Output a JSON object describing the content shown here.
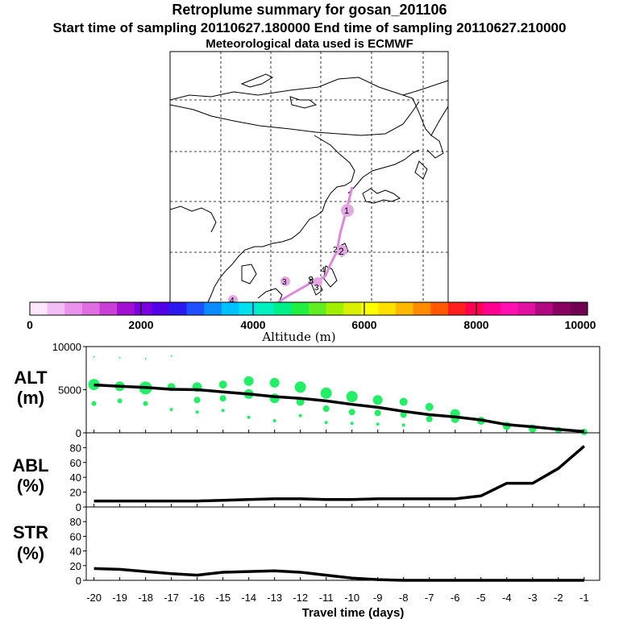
{
  "header": {
    "title": "Retroplume summary for gosan_201106",
    "sampling_line": "Start time of sampling 20110627.180000     End time of sampling 20110627.210000",
    "met_line": "Meteorological data used is ECMWF"
  },
  "colorbar": {
    "label": "Altitude (m)",
    "ticks": [
      "0",
      "2000",
      "4000",
      "6000",
      "8000",
      "10000"
    ],
    "colors": [
      "#fbe6fb",
      "#f3bef3",
      "#e993ec",
      "#de6ee2",
      "#c93fd5",
      "#a20fd0",
      "#7a00dd",
      "#5200e6",
      "#2a1af0",
      "#1e50ff",
      "#0a8cff",
      "#00c0ff",
      "#00e0ee",
      "#00f0c0",
      "#00ee88",
      "#20ee40",
      "#60ee20",
      "#a0f000",
      "#d8f000",
      "#ffff00",
      "#ffe000",
      "#ffb800",
      "#ff8c00",
      "#ff5a00",
      "#ff1e1e",
      "#ff0050",
      "#ff0090",
      "#ff10b0",
      "#e010a0",
      "#b00880",
      "#880060",
      "#700050"
    ]
  },
  "map": {
    "labels": [
      "1",
      "2",
      "2",
      "3",
      "3",
      "3",
      "4",
      "4"
    ],
    "colors": {
      "trajectory": "#dd88dd",
      "marker": "#e4a8e4"
    }
  },
  "panels": {
    "alt": {
      "label_top": "ALT",
      "label_bottom": "(m)"
    },
    "abl": {
      "label_top": "ABL",
      "label_bottom": "(%)"
    },
    "str": {
      "label_top": "STR",
      "label_bottom": "(%)"
    }
  },
  "xaxis": {
    "label": "Travel time (days)"
  },
  "colors": {
    "plume": "#22ee66",
    "line": "#000000"
  },
  "chart_data": [
    {
      "type": "line",
      "title": "ALT",
      "ylabel": "(m)",
      "ylim": [
        0,
        10000
      ],
      "yticks": [
        "10000",
        "5000",
        "0"
      ],
      "xlim": [
        -20.3,
        -0.4
      ],
      "xticks": [
        "-20",
        "-19",
        "-18",
        "-17",
        "-16",
        "-15",
        "-14",
        "-13",
        "-12",
        "-11",
        "-10",
        "-9",
        "-8",
        "-7",
        "-6",
        "-5",
        "-4",
        "-3",
        "-2",
        "-1"
      ],
      "x": [
        -20,
        -19,
        -18,
        -17,
        -16,
        -15,
        -14,
        -13,
        -12,
        -11,
        -10,
        -9,
        -8,
        -7,
        -6,
        -5,
        -4,
        -3,
        -2,
        -1
      ],
      "values": [
        5550,
        5400,
        5250,
        5050,
        5000,
        4750,
        4500,
        4200,
        4000,
        3700,
        3300,
        2950,
        2500,
        2100,
        1850,
        1500,
        950,
        700,
        400,
        150
      ],
      "plume_points": [
        {
          "x": -20,
          "y": 5600,
          "r": 7
        },
        {
          "x": -20,
          "y": 3400,
          "r": 3
        },
        {
          "x": -20,
          "y": 8800,
          "r": 1
        },
        {
          "x": -19,
          "y": 5400,
          "r": 6
        },
        {
          "x": -19,
          "y": 3700,
          "r": 3
        },
        {
          "x": -19,
          "y": 8700,
          "r": 1
        },
        {
          "x": -18,
          "y": 5200,
          "r": 8
        },
        {
          "x": -18,
          "y": 3400,
          "r": 3
        },
        {
          "x": -18,
          "y": 8600,
          "r": 1
        },
        {
          "x": -17,
          "y": 5300,
          "r": 5
        },
        {
          "x": -17,
          "y": 2700,
          "r": 2
        },
        {
          "x": -17,
          "y": 8900,
          "r": 1
        },
        {
          "x": -16,
          "y": 5300,
          "r": 6
        },
        {
          "x": -16,
          "y": 3800,
          "r": 4
        },
        {
          "x": -16,
          "y": 2400,
          "r": 2
        },
        {
          "x": -15,
          "y": 5600,
          "r": 5
        },
        {
          "x": -15,
          "y": 4000,
          "r": 4
        },
        {
          "x": -15,
          "y": 2600,
          "r": 2
        },
        {
          "x": -14,
          "y": 6000,
          "r": 6
        },
        {
          "x": -14,
          "y": 4500,
          "r": 6
        },
        {
          "x": -14,
          "y": 1800,
          "r": 2
        },
        {
          "x": -13,
          "y": 5800,
          "r": 6
        },
        {
          "x": -13,
          "y": 4000,
          "r": 6
        },
        {
          "x": -13,
          "y": 1400,
          "r": 2
        },
        {
          "x": -12,
          "y": 5300,
          "r": 7
        },
        {
          "x": -12,
          "y": 3600,
          "r": 5
        },
        {
          "x": -12,
          "y": 2000,
          "r": 2
        },
        {
          "x": -11,
          "y": 4600,
          "r": 7
        },
        {
          "x": -11,
          "y": 2800,
          "r": 4
        },
        {
          "x": -11,
          "y": 1200,
          "r": 2
        },
        {
          "x": -10,
          "y": 4200,
          "r": 7
        },
        {
          "x": -10,
          "y": 2400,
          "r": 4
        },
        {
          "x": -10,
          "y": 1100,
          "r": 2
        },
        {
          "x": -9,
          "y": 3800,
          "r": 6
        },
        {
          "x": -9,
          "y": 2300,
          "r": 4
        },
        {
          "x": -9,
          "y": 1000,
          "r": 2
        },
        {
          "x": -8,
          "y": 3600,
          "r": 5
        },
        {
          "x": -8,
          "y": 2100,
          "r": 4
        },
        {
          "x": -8,
          "y": 900,
          "r": 2
        },
        {
          "x": -7,
          "y": 3000,
          "r": 5
        },
        {
          "x": -7,
          "y": 1600,
          "r": 4
        },
        {
          "x": -6,
          "y": 2200,
          "r": 6
        },
        {
          "x": -6,
          "y": 1600,
          "r": 5
        },
        {
          "x": -5,
          "y": 1400,
          "r": 5
        },
        {
          "x": -4,
          "y": 800,
          "r": 5
        },
        {
          "x": -3,
          "y": 500,
          "r": 5
        },
        {
          "x": -2,
          "y": 300,
          "r": 4
        },
        {
          "x": -1,
          "y": 100,
          "r": 4
        }
      ]
    },
    {
      "type": "line",
      "title": "ABL",
      "ylabel": "(%)",
      "ylim": [
        0,
        100
      ],
      "yticks": [
        "80",
        "60",
        "40",
        "20",
        "0"
      ],
      "x": [
        -20,
        -19,
        -18,
        -17,
        -16,
        -15,
        -14,
        -13,
        -12,
        -11,
        -10,
        -9,
        -8,
        -7,
        -6,
        -5,
        -4,
        -3,
        -2,
        -1
      ],
      "values": [
        8,
        8,
        8,
        8,
        8,
        9,
        10,
        11,
        11,
        10,
        10,
        11,
        11,
        11,
        11,
        15,
        32,
        32,
        52,
        82
      ]
    },
    {
      "type": "line",
      "title": "STR",
      "ylabel": "(%)",
      "ylim": [
        0,
        100
      ],
      "yticks": [
        "80",
        "60",
        "40",
        "20",
        "0"
      ],
      "x": [
        -20,
        -19,
        -18,
        -17,
        -16,
        -15,
        -14,
        -13,
        -12,
        -11,
        -10,
        -9,
        -8,
        -7,
        -6,
        -5,
        -4,
        -3,
        -2,
        -1
      ],
      "values": [
        16,
        15,
        12,
        9,
        7,
        11,
        12,
        13,
        11,
        7,
        3,
        1,
        0,
        0,
        0,
        0,
        0,
        0,
        0,
        0
      ]
    }
  ]
}
